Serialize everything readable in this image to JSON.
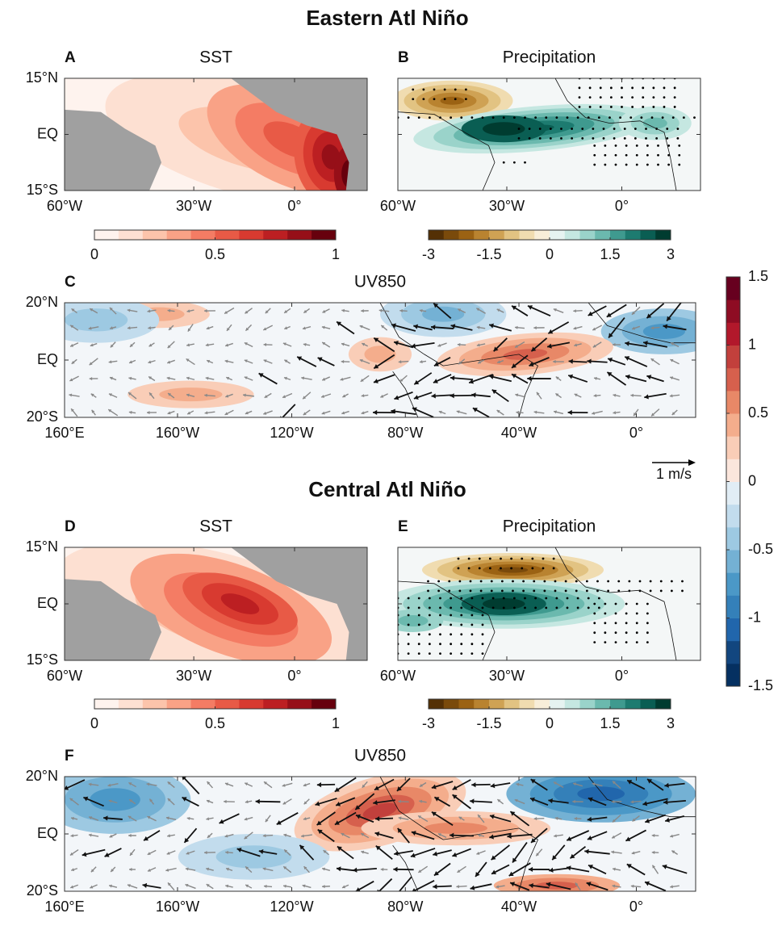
{
  "titles": [
    "Eastern Atl Niño",
    "Central Atl Niño"
  ],
  "panels": [
    {
      "letter": "A",
      "title": "SST",
      "kind": "sst",
      "yticks": [
        "15°N",
        "EQ",
        "15°S"
      ],
      "xticks": [
        "60°W",
        "30°W",
        "0°"
      ]
    },
    {
      "letter": "B",
      "title": "Precipitation",
      "kind": "precip",
      "yticks": [],
      "xticks": [
        "60°W",
        "30°W",
        "0°"
      ]
    },
    {
      "letter": "C",
      "title": "UV850",
      "kind": "uv",
      "yticks": [
        "20°N",
        "EQ",
        "20°S"
      ],
      "xticks": [
        "160°E",
        "160°W",
        "120°W",
        "80°W",
        "40°W",
        "0°"
      ]
    },
    {
      "letter": "D",
      "title": "SST",
      "kind": "sst",
      "yticks": [
        "15°N",
        "EQ",
        "15°S"
      ],
      "xticks": [
        "60°W",
        "30°W",
        "0°"
      ]
    },
    {
      "letter": "E",
      "title": "Precipitation",
      "kind": "precip",
      "yticks": [],
      "xticks": [
        "60°W",
        "30°W",
        "0°"
      ]
    },
    {
      "letter": "F",
      "title": "UV850",
      "kind": "uv",
      "yticks": [
        "20°N",
        "EQ",
        "20°S"
      ],
      "xticks": [
        "160°E",
        "160°W",
        "120°W",
        "80°W",
        "40°W",
        "0°"
      ]
    }
  ],
  "scale_label": "1 m/s",
  "colorbars": [
    {
      "lim": [
        0,
        1
      ],
      "ticks": [
        0,
        0.5,
        1
      ],
      "colors": [
        "#fef3ee",
        "#fde0d2",
        "#fcc4ab",
        "#f9a286",
        "#f47c64",
        "#e85a46",
        "#d83a30",
        "#bc1f22",
        "#960f18",
        "#67000d"
      ]
    },
    {
      "lim": [
        -3,
        3
      ],
      "ticks": [
        -3,
        -1.5,
        0,
        1.5,
        3
      ],
      "colors": [
        "#543005",
        "#7a4a0b",
        "#9b6213",
        "#b98330",
        "#cfa254",
        "#e2c382",
        "#f0dcb0",
        "#f8eed9",
        "#e6f3f1",
        "#c5e7e1",
        "#9ad3ca",
        "#6bb9ae",
        "#3f9a8f",
        "#1d7b70",
        "#0a5e53",
        "#003c30"
      ]
    },
    {
      "lim": [
        0,
        1
      ],
      "ticks": [
        0,
        0.5,
        1
      ],
      "colors": [
        "#fef3ee",
        "#fde0d2",
        "#fcc4ab",
        "#f9a286",
        "#f47c64",
        "#e85a46",
        "#d83a30",
        "#bc1f22",
        "#960f18",
        "#67000d"
      ]
    },
    {
      "lim": [
        -3,
        3
      ],
      "ticks": [
        -3,
        -1.5,
        0,
        1.5,
        3
      ],
      "colors": [
        "#543005",
        "#7a4a0b",
        "#9b6213",
        "#b98330",
        "#cfa254",
        "#e2c382",
        "#f0dcb0",
        "#f8eed9",
        "#e6f3f1",
        "#c5e7e1",
        "#9ad3ca",
        "#6bb9ae",
        "#3f9a8f",
        "#1d7b70",
        "#0a5e53",
        "#003c30"
      ]
    },
    {
      "lim": [
        -1.5,
        1.5
      ],
      "ticks": [
        -1.5,
        -1,
        -0.5,
        0,
        0.5,
        1,
        1.5
      ],
      "colors": [
        "#053061",
        "#12467f",
        "#2166ac",
        "#3480b9",
        "#4b98c7",
        "#74b1d4",
        "#9dc9e2",
        "#c2dced",
        "#e1edf5",
        "#fbe6dc",
        "#f9cdb7",
        "#f4ad8c",
        "#e88867",
        "#d6604d",
        "#c2403c",
        "#b2182b",
        "#8e0c23",
        "#67001f"
      ]
    }
  ]
}
